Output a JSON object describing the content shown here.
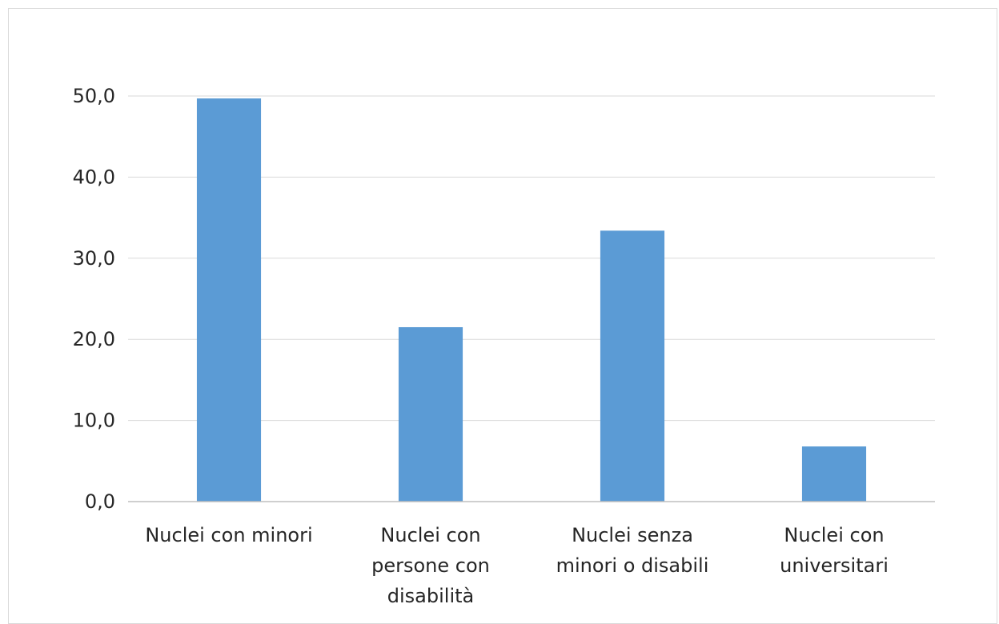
{
  "chart_data": {
    "type": "bar",
    "categories": [
      [
        "Nuclei con minori"
      ],
      [
        "Nuclei con",
        "persone con",
        "disabilità"
      ],
      [
        "Nuclei senza",
        "minori o disabili"
      ],
      [
        "Nuclei con",
        "universitari"
      ]
    ],
    "values": [
      49.7,
      21.5,
      33.4,
      6.8
    ],
    "ylim": [
      0,
      50
    ],
    "yticks": [
      "0,0",
      "10,0",
      "20,0",
      "30,0",
      "40,0",
      "50,0"
    ],
    "grid": true,
    "legend": "none",
    "title": "",
    "xlabel": "",
    "ylabel": "",
    "colors": {
      "bar": "#5b9bd5",
      "grid": "#d9d9d9",
      "axis": "#bfbfbf",
      "text": "#262626"
    }
  }
}
